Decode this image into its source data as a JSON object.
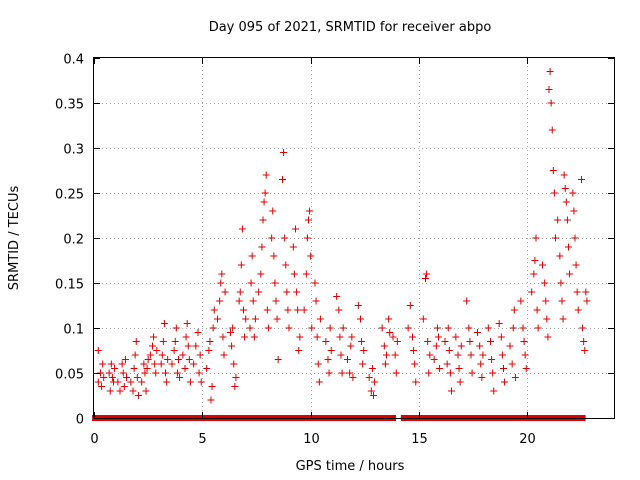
{
  "chart_data": {
    "type": "scatter",
    "title": "Day 095 of 2021, SRMTID for receiver abpo",
    "xlabel": "GPS time / hours",
    "ylabel": "SRMTID / TECUs",
    "xlim": [
      0,
      24
    ],
    "ylim": [
      0,
      0.4
    ],
    "xticks": [
      0,
      5,
      10,
      15,
      20
    ],
    "xtick_labels": [
      "0",
      "5",
      "10",
      "15",
      "20"
    ],
    "yticks": [
      0,
      0.05,
      0.1,
      0.15,
      0.2,
      0.25,
      0.3,
      0.35,
      0.4
    ],
    "ytick_labels": [
      "0",
      "0.05",
      "0.1",
      "0.15",
      "0.2",
      "0.25",
      "0.3",
      "0.35",
      "0.4"
    ],
    "grid": true,
    "marker": "+",
    "color": "#e00000",
    "zero_marker": "square",
    "series": [
      {
        "name": "SRMTID",
        "points": [
          [
            0.2,
            0.075
          ],
          [
            0.2,
            0.04
          ],
          [
            0.3,
            0.05
          ],
          [
            0.35,
            0.035
          ],
          [
            0.4,
            0.06
          ],
          [
            0.45,
            0.045
          ],
          [
            0.7,
            0.05
          ],
          [
            0.75,
            0.03
          ],
          [
            0.8,
            0.06
          ],
          [
            0.85,
            0.045
          ],
          [
            0.9,
            0.04
          ],
          [
            0.95,
            0.055
          ],
          [
            1.1,
            0.04
          ],
          [
            1.2,
            0.03
          ],
          [
            1.3,
            0.06
          ],
          [
            1.35,
            0.05
          ],
          [
            1.4,
            0.035
          ],
          [
            1.45,
            0.065
          ],
          [
            1.5,
            0.045
          ],
          [
            1.7,
            0.04
          ],
          [
            1.8,
            0.03
          ],
          [
            1.85,
            0.055
          ],
          [
            1.9,
            0.07
          ],
          [
            1.95,
            0.085
          ],
          [
            2.0,
            0.045
          ],
          [
            2.05,
            0.025
          ],
          [
            2.2,
            0.04
          ],
          [
            2.3,
            0.06
          ],
          [
            2.35,
            0.05
          ],
          [
            2.4,
            0.03
          ],
          [
            2.45,
            0.055
          ],
          [
            2.5,
            0.065
          ],
          [
            2.6,
            0.07
          ],
          [
            2.7,
            0.08
          ],
          [
            2.75,
            0.09
          ],
          [
            2.8,
            0.06
          ],
          [
            2.85,
            0.05
          ],
          [
            2.9,
            0.075
          ],
          [
            3.1,
            0.06
          ],
          [
            3.15,
            0.07
          ],
          [
            3.2,
            0.085
          ],
          [
            3.25,
            0.105
          ],
          [
            3.3,
            0.05
          ],
          [
            3.35,
            0.04
          ],
          [
            3.4,
            0.065
          ],
          [
            3.6,
            0.06
          ],
          [
            3.7,
            0.075
          ],
          [
            3.75,
            0.085
          ],
          [
            3.8,
            0.1
          ],
          [
            3.85,
            0.05
          ],
          [
            3.9,
            0.065
          ],
          [
            3.95,
            0.045
          ],
          [
            4.1,
            0.07
          ],
          [
            4.2,
            0.055
          ],
          [
            4.25,
            0.09
          ],
          [
            4.3,
            0.105
          ],
          [
            4.35,
            0.08
          ],
          [
            4.4,
            0.065
          ],
          [
            4.45,
            0.04
          ],
          [
            4.6,
            0.06
          ],
          [
            4.7,
            0.08
          ],
          [
            4.8,
            0.095
          ],
          [
            4.85,
            0.05
          ],
          [
            4.9,
            0.07
          ],
          [
            4.95,
            0.04
          ],
          [
            5.2,
            0.055
          ],
          [
            5.3,
            0.075
          ],
          [
            5.35,
            0.085
          ],
          [
            5.4,
            0.02
          ],
          [
            5.45,
            0.035
          ],
          [
            5.5,
            0.1
          ],
          [
            5.55,
            0.12
          ],
          [
            5.7,
            0.11
          ],
          [
            5.8,
            0.13
          ],
          [
            5.85,
            0.15
          ],
          [
            5.9,
            0.16
          ],
          [
            5.95,
            0.09
          ],
          [
            6.0,
            0.07
          ],
          [
            6.05,
            0.14
          ],
          [
            6.3,
            0.095
          ],
          [
            6.35,
            0.08
          ],
          [
            6.4,
            0.1
          ],
          [
            6.45,
            0.06
          ],
          [
            6.5,
            0.035
          ],
          [
            6.55,
            0.045
          ],
          [
            6.7,
            0.13
          ],
          [
            6.75,
            0.14
          ],
          [
            6.8,
            0.17
          ],
          [
            6.85,
            0.21
          ],
          [
            6.9,
            0.12
          ],
          [
            6.95,
            0.09
          ],
          [
            7.0,
            0.11
          ],
          [
            7.2,
            0.1
          ],
          [
            7.25,
            0.15
          ],
          [
            7.3,
            0.18
          ],
          [
            7.35,
            0.13
          ],
          [
            7.4,
            0.09
          ],
          [
            7.45,
            0.11
          ],
          [
            7.6,
            0.14
          ],
          [
            7.7,
            0.16
          ],
          [
            7.75,
            0.19
          ],
          [
            7.8,
            0.22
          ],
          [
            7.85,
            0.24
          ],
          [
            7.9,
            0.25
          ],
          [
            7.95,
            0.27
          ],
          [
            8.0,
            0.12
          ],
          [
            8.05,
            0.1
          ],
          [
            8.2,
            0.2
          ],
          [
            8.25,
            0.23
          ],
          [
            8.3,
            0.18
          ],
          [
            8.35,
            0.15
          ],
          [
            8.4,
            0.13
          ],
          [
            8.45,
            0.11
          ],
          [
            8.5,
            0.065
          ],
          [
            8.7,
            0.265
          ],
          [
            8.75,
            0.295
          ],
          [
            8.8,
            0.2
          ],
          [
            8.85,
            0.17
          ],
          [
            8.9,
            0.14
          ],
          [
            8.95,
            0.12
          ],
          [
            9.0,
            0.1
          ],
          [
            9.2,
            0.19
          ],
          [
            9.25,
            0.16
          ],
          [
            9.3,
            0.21
          ],
          [
            9.35,
            0.14
          ],
          [
            9.4,
            0.12
          ],
          [
            9.45,
            0.075
          ],
          [
            9.5,
            0.09
          ],
          [
            9.7,
            0.12
          ],
          [
            9.8,
            0.16
          ],
          [
            9.85,
            0.2
          ],
          [
            9.9,
            0.22
          ],
          [
            9.95,
            0.23
          ],
          [
            10.0,
            0.18
          ],
          [
            10.05,
            0.1
          ],
          [
            10.2,
            0.15
          ],
          [
            10.25,
            0.13
          ],
          [
            10.3,
            0.09
          ],
          [
            10.35,
            0.06
          ],
          [
            10.4,
            0.04
          ],
          [
            10.45,
            0.11
          ],
          [
            10.7,
            0.085
          ],
          [
            10.8,
            0.065
          ],
          [
            10.85,
            0.05
          ],
          [
            10.9,
            0.1
          ],
          [
            10.95,
            0.075
          ],
          [
            11.2,
            0.135
          ],
          [
            11.3,
            0.12
          ],
          [
            11.35,
            0.09
          ],
          [
            11.4,
            0.07
          ],
          [
            11.45,
            0.05
          ],
          [
            11.5,
            0.1
          ],
          [
            11.7,
            0.065
          ],
          [
            11.8,
            0.05
          ],
          [
            11.85,
            0.08
          ],
          [
            11.9,
            0.09
          ],
          [
            11.95,
            0.045
          ],
          [
            12.2,
            0.125
          ],
          [
            12.3,
            0.11
          ],
          [
            12.35,
            0.085
          ],
          [
            12.4,
            0.06
          ],
          [
            12.45,
            0.075
          ],
          [
            12.7,
            0.045
          ],
          [
            12.8,
            0.03
          ],
          [
            12.85,
            0.055
          ],
          [
            12.9,
            0.025
          ],
          [
            12.95,
            0.04
          ],
          [
            13.3,
            0.1
          ],
          [
            13.4,
            0.08
          ],
          [
            13.45,
            0.06
          ],
          [
            13.5,
            0.07
          ],
          [
            13.6,
            0.11
          ],
          [
            13.65,
            0.095
          ],
          [
            13.8,
            0.09
          ],
          [
            13.9,
            0.07
          ],
          [
            13.95,
            0.05
          ],
          [
            14.0,
            0.085
          ],
          [
            14.5,
            0.1
          ],
          [
            14.6,
            0.125
          ],
          [
            14.7,
            0.09
          ],
          [
            14.75,
            0.075
          ],
          [
            14.8,
            0.06
          ],
          [
            14.85,
            0.04
          ],
          [
            15.2,
            0.11
          ],
          [
            15.3,
            0.155
          ],
          [
            15.35,
            0.16
          ],
          [
            15.4,
            0.085
          ],
          [
            15.45,
            0.05
          ],
          [
            15.5,
            0.07
          ],
          [
            15.7,
            0.065
          ],
          [
            15.8,
            0.08
          ],
          [
            15.85,
            0.1
          ],
          [
            15.9,
            0.09
          ],
          [
            15.95,
            0.055
          ],
          [
            16.2,
            0.085
          ],
          [
            16.3,
            0.06
          ],
          [
            16.35,
            0.1
          ],
          [
            16.4,
            0.075
          ],
          [
            16.45,
            0.05
          ],
          [
            16.5,
            0.03
          ],
          [
            16.7,
            0.09
          ],
          [
            16.8,
            0.07
          ],
          [
            16.85,
            0.055
          ],
          [
            16.9,
            0.04
          ],
          [
            16.95,
            0.08
          ],
          [
            17.2,
            0.13
          ],
          [
            17.3,
            0.1
          ],
          [
            17.35,
            0.085
          ],
          [
            17.4,
            0.07
          ],
          [
            17.45,
            0.05
          ],
          [
            17.7,
            0.095
          ],
          [
            17.8,
            0.08
          ],
          [
            17.85,
            0.06
          ],
          [
            17.9,
            0.045
          ],
          [
            17.95,
            0.07
          ],
          [
            18.2,
            0.1
          ],
          [
            18.3,
            0.085
          ],
          [
            18.35,
            0.065
          ],
          [
            18.4,
            0.05
          ],
          [
            18.45,
            0.03
          ],
          [
            18.7,
            0.105
          ],
          [
            18.8,
            0.09
          ],
          [
            18.85,
            0.07
          ],
          [
            18.9,
            0.055
          ],
          [
            18.95,
            0.04
          ],
          [
            19.2,
            0.08
          ],
          [
            19.3,
            0.06
          ],
          [
            19.35,
            0.1
          ],
          [
            19.4,
            0.12
          ],
          [
            19.45,
            0.045
          ],
          [
            19.7,
            0.13
          ],
          [
            19.8,
            0.1
          ],
          [
            19.85,
            0.085
          ],
          [
            19.9,
            0.07
          ],
          [
            19.95,
            0.055
          ],
          [
            20.2,
            0.14
          ],
          [
            20.3,
            0.16
          ],
          [
            20.35,
            0.175
          ],
          [
            20.4,
            0.2
          ],
          [
            20.45,
            0.12
          ],
          [
            20.5,
            0.1
          ],
          [
            20.7,
            0.17
          ],
          [
            20.8,
            0.15
          ],
          [
            20.85,
            0.13
          ],
          [
            20.9,
            0.11
          ],
          [
            20.95,
            0.09
          ],
          [
            21.0,
            0.365
          ],
          [
            21.05,
            0.385
          ],
          [
            21.1,
            0.35
          ],
          [
            21.15,
            0.32
          ],
          [
            21.2,
            0.275
          ],
          [
            21.25,
            0.25
          ],
          [
            21.3,
            0.2
          ],
          [
            21.4,
            0.22
          ],
          [
            21.5,
            0.18
          ],
          [
            21.55,
            0.15
          ],
          [
            21.6,
            0.13
          ],
          [
            21.65,
            0.11
          ],
          [
            21.7,
            0.27
          ],
          [
            21.75,
            0.255
          ],
          [
            21.8,
            0.24
          ],
          [
            21.85,
            0.22
          ],
          [
            21.9,
            0.19
          ],
          [
            21.95,
            0.16
          ],
          [
            22.1,
            0.25
          ],
          [
            22.15,
            0.23
          ],
          [
            22.2,
            0.2
          ],
          [
            22.25,
            0.17
          ],
          [
            22.3,
            0.14
          ],
          [
            22.35,
            0.12
          ],
          [
            22.5,
            0.265
          ],
          [
            22.55,
            0.1
          ],
          [
            22.6,
            0.085
          ],
          [
            22.65,
            0.075
          ],
          [
            22.7,
            0.14
          ],
          [
            22.75,
            0.13
          ]
        ]
      }
    ],
    "zero_points_x": [
      0.05,
      0.3,
      0.55,
      0.8,
      1.05,
      1.3,
      1.55,
      1.8,
      2.05,
      2.3,
      2.55,
      2.8,
      3.05,
      3.3,
      3.55,
      3.8,
      4.05,
      4.3,
      4.55,
      4.8,
      5.05,
      5.3,
      5.55,
      5.8,
      6.05,
      6.3,
      6.55,
      6.8,
      7.05,
      7.3,
      7.55,
      7.8,
      8.05,
      8.3,
      8.55,
      8.8,
      9.05,
      9.3,
      9.55,
      9.8,
      10.05,
      10.3,
      10.55,
      10.8,
      11.05,
      11.3,
      11.55,
      11.8,
      12.05,
      12.3,
      12.55,
      12.8,
      13.05,
      13.3,
      13.55,
      13.8,
      14.3,
      14.55,
      14.8,
      15.05,
      15.3,
      15.55,
      15.8,
      16.05,
      16.3,
      16.55,
      16.8,
      17.05,
      17.3,
      17.55,
      17.8,
      18.05,
      18.3,
      18.55,
      18.8,
      19.05,
      19.3,
      19.55,
      19.8,
      20.05,
      20.3,
      20.55,
      20.8,
      21.05,
      21.3,
      21.55,
      21.8,
      22.05,
      22.3,
      22.55
    ]
  }
}
